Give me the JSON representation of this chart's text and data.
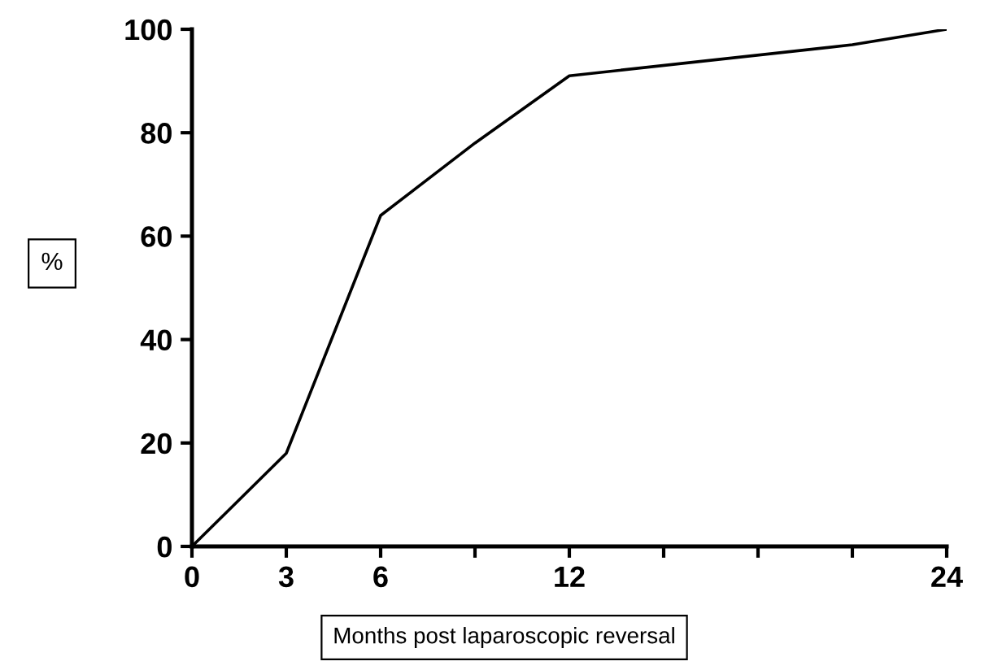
{
  "chart_data": {
    "type": "line",
    "xlabel": "Months post laparoscopic reversal",
    "ylabel": "%",
    "x": [
      0,
      3,
      6,
      9,
      12,
      21,
      24
    ],
    "series": [
      {
        "color": "#000000",
        "values": [
          0,
          18,
          64,
          78,
          91,
          97,
          100
        ]
      }
    ],
    "xlim": [
      0,
      24
    ],
    "xticks": [
      0,
      3,
      6,
      {
        "value": 9,
        "label": null
      },
      12,
      {
        "value": 15,
        "label": null
      },
      {
        "value": 18,
        "label": null
      },
      {
        "value": 21,
        "label": null
      },
      24
    ],
    "ylim": [
      0,
      100
    ],
    "yticks": [
      0,
      20,
      40,
      60,
      80,
      100
    ],
    "grid": false,
    "legend": false,
    "marker": "none",
    "line_style": "solid"
  }
}
